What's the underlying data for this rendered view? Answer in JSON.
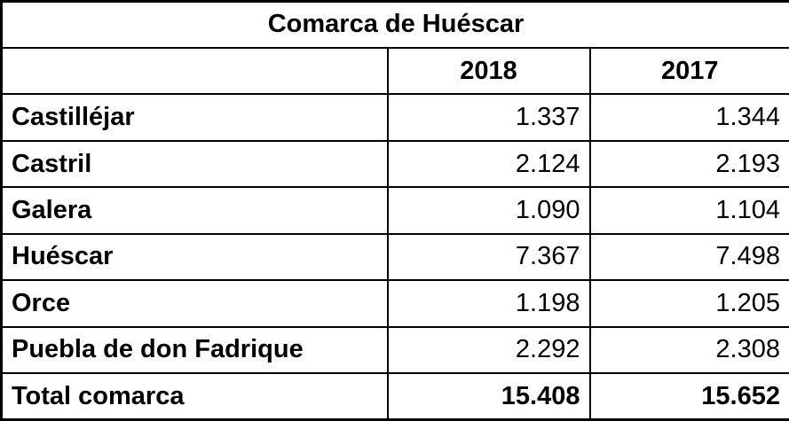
{
  "table": {
    "title": "Comarca de Huéscar",
    "columns": {
      "label": "",
      "year1": "2018",
      "year2": "2017"
    },
    "rows": [
      {
        "label": "Castilléjar",
        "v2018": "1.337",
        "v2017": "1.344"
      },
      {
        "label": "Castril",
        "v2018": "2.124",
        "v2017": "2.193"
      },
      {
        "label": "Galera",
        "v2018": "1.090",
        "v2017": "1.104"
      },
      {
        "label": "Huéscar",
        "v2018": "7.367",
        "v2017": "7.498"
      },
      {
        "label": "Orce",
        "v2018": "1.198",
        "v2017": "1.205"
      },
      {
        "label": "Puebla de don Fadrique",
        "v2018": "2.292",
        "v2017": "2.308"
      }
    ],
    "total": {
      "label": "Total comarca",
      "v2018": "15.408",
      "v2017": "15.652"
    }
  }
}
